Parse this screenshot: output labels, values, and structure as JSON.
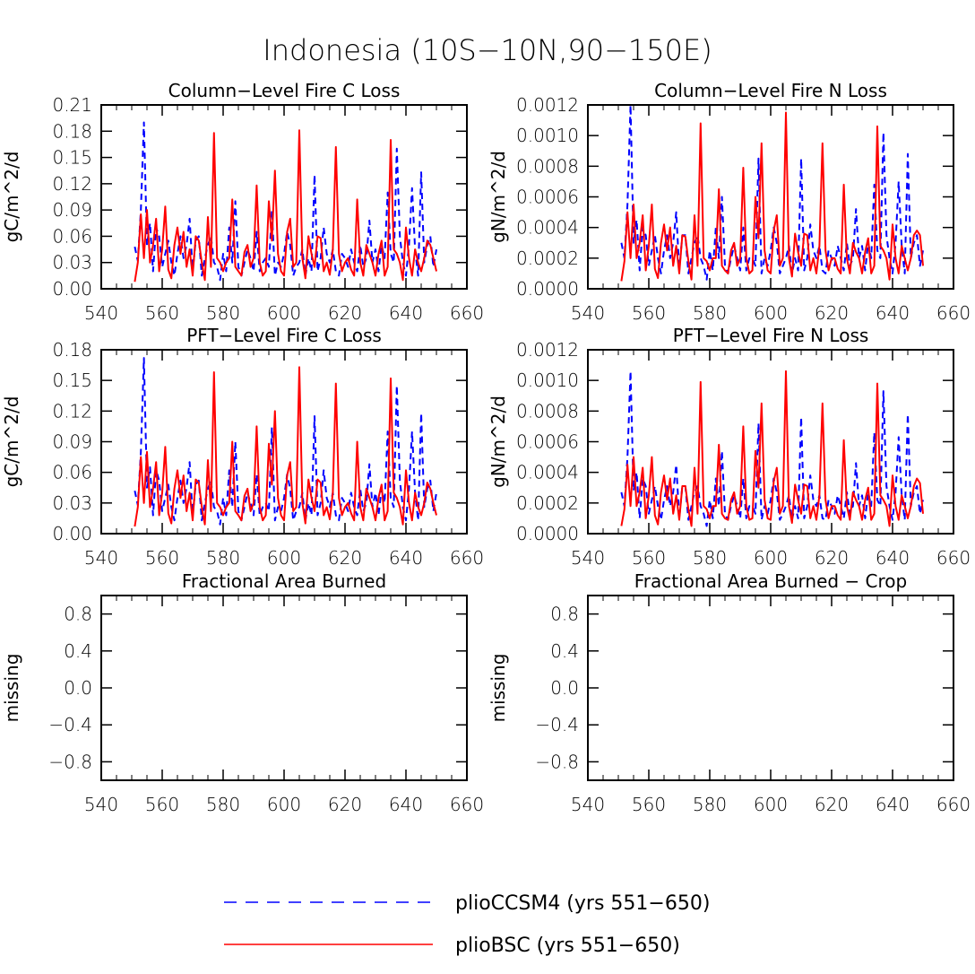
{
  "title": "Indonesia (10S−10N,90−150E)",
  "legend": [
    {
      "label": "plioCCSM4 (yrs 551−650)",
      "color": "#0000ff",
      "dash": "14 10"
    },
    {
      "label": "plioBSC (yrs 551−650)",
      "color": "#ff0000",
      "dash": ""
    }
  ],
  "chart_data": [
    {
      "type": "line",
      "title": "Column−Level Fire C Loss",
      "ylabel": "gC/m^2/d",
      "xlim": [
        540,
        660
      ],
      "ylim": [
        0,
        0.21
      ],
      "xticks": [
        "540",
        "560",
        "580",
        "600",
        "620",
        "640",
        "660"
      ],
      "yticks": [
        "0.00",
        "0.03",
        "0.06",
        "0.09",
        "0.12",
        "0.15",
        "0.18",
        "0.21"
      ],
      "x_start": 551,
      "series": [
        {
          "name": "plioCCSM4 (yrs 551−650)",
          "values": [
            0.048,
            0.032,
            0.09,
            0.19,
            0.05,
            0.075,
            0.02,
            0.07,
            0.06,
            0.025,
            0.04,
            0.055,
            0.03,
            0.015,
            0.04,
            0.06,
            0.035,
            0.05,
            0.08,
            0.02,
            0.055,
            0.06,
            0.015,
            0.035,
            0.05,
            0.06,
            0.03,
            0.025,
            0.01,
            0.04,
            0.02,
            0.07,
            0.03,
            0.1,
            0.025,
            0.015,
            0.03,
            0.045,
            0.035,
            0.02,
            0.065,
            0.02,
            0.03,
            0.035,
            0.025,
            0.09,
            0.015,
            0.03,
            0.025,
            0.04,
            0.065,
            0.05,
            0.015,
            0.025,
            0.03,
            0.045,
            0.015,
            0.035,
            0.02,
            0.13,
            0.02,
            0.035,
            0.07,
            0.04,
            0.03,
            0.045,
            0.02,
            0.015,
            0.04,
            0.035,
            0.025,
            0.045,
            0.03,
            0.02,
            0.05,
            0.025,
            0.035,
            0.078,
            0.03,
            0.045,
            0.02,
            0.05,
            0.035,
            0.11,
            0.04,
            0.03,
            0.16,
            0.06,
            0.03,
            0.015,
            0.05,
            0.115,
            0.045,
            0.015,
            0.133,
            0.03,
            0.05,
            0.06,
            0.025,
            0.045
          ]
        },
        {
          "name": "plioBSC (yrs 551−650)",
          "values": [
            0.008,
            0.03,
            0.085,
            0.035,
            0.09,
            0.03,
            0.05,
            0.08,
            0.02,
            0.045,
            0.094,
            0.022,
            0.012,
            0.05,
            0.07,
            0.04,
            0.065,
            0.025,
            0.045,
            0.015,
            0.06,
            0.055,
            0.03,
            0.01,
            0.082,
            0.025,
            0.178,
            0.035,
            0.03,
            0.02,
            0.03,
            0.035,
            0.102,
            0.025,
            0.02,
            0.015,
            0.042,
            0.05,
            0.025,
            0.035,
            0.118,
            0.03,
            0.015,
            0.02,
            0.1,
            0.055,
            0.135,
            0.04,
            0.02,
            0.015,
            0.065,
            0.08,
            0.025,
            0.03,
            0.181,
            0.035,
            0.012,
            0.06,
            0.04,
            0.025,
            0.06,
            0.058,
            0.02,
            0.03,
            0.016,
            0.045,
            0.162,
            0.04,
            0.02,
            0.03,
            0.035,
            0.022,
            0.015,
            0.102,
            0.03,
            0.015,
            0.05,
            0.04,
            0.03,
            0.015,
            0.04,
            0.055,
            0.015,
            0.025,
            0.17,
            0.045,
            0.04,
            0.03,
            0.01,
            0.07,
            0.035,
            0.015,
            0.045,
            0.03,
            0.02,
            0.035,
            0.055,
            0.05,
            0.035,
            0.02
          ]
        }
      ]
    },
    {
      "type": "line",
      "title": "Column−Level Fire N Loss",
      "ylabel": "gN/m^2/d",
      "xlim": [
        540,
        660
      ],
      "ylim": [
        0,
        0.0012
      ],
      "xticks": [
        "540",
        "560",
        "580",
        "600",
        "620",
        "640",
        "660"
      ],
      "yticks": [
        "0.0000",
        "0.0002",
        "0.0004",
        "0.0006",
        "0.0008",
        "0.0010",
        "0.0012"
      ],
      "x_start": 551,
      "series": [
        {
          "name": "plioCCSM4 (yrs 551−650)",
          "values": [
            0.0003,
            0.0002,
            0.00055,
            0.0012,
            0.0003,
            0.00045,
            0.00012,
            0.0004,
            0.00035,
            0.00015,
            0.00025,
            0.00035,
            0.0002,
            0.0001,
            0.00025,
            0.00035,
            0.0002,
            0.0003,
            0.0005,
            0.00012,
            0.00035,
            0.00035,
            0.0001,
            0.0002,
            0.0003,
            0.00035,
            0.0002,
            0.00015,
            6e-05,
            0.00025,
            0.00012,
            0.0004,
            0.0002,
            0.0006,
            0.00015,
            0.0001,
            0.0002,
            0.00028,
            0.0002,
            0.00012,
            0.0004,
            0.00012,
            0.0002,
            0.0002,
            0.00015,
            0.00085,
            0.0001,
            0.0002,
            0.00015,
            0.00025,
            0.0004,
            0.0003,
            0.0001,
            0.00015,
            0.0002,
            0.00028,
            0.0001,
            0.0002,
            0.00012,
            0.00085,
            0.00012,
            0.0002,
            0.00042,
            0.00025,
            0.0002,
            0.00028,
            0.00012,
            0.0001,
            0.00025,
            0.0002,
            0.00015,
            0.00028,
            0.0002,
            0.00012,
            0.0003,
            0.00015,
            0.0002,
            0.00052,
            0.0002,
            0.00028,
            0.00012,
            0.0003,
            0.0002,
            0.00068,
            0.00025,
            0.0002,
            0.00102,
            0.00035,
            0.0002,
            0.0001,
            0.0003,
            0.0007,
            0.00028,
            0.0001,
            0.00088,
            0.0002,
            0.0003,
            0.00035,
            0.00015,
            0.00025
          ]
        },
        {
          "name": "plioBSC (yrs 551−650)",
          "values": [
            5e-05,
            0.00018,
            0.0005,
            0.0002,
            0.00055,
            0.0002,
            0.0003,
            0.00048,
            0.00012,
            0.00028,
            0.00055,
            0.00013,
            7e-05,
            0.0003,
            0.00042,
            0.00025,
            0.0004,
            0.00015,
            0.00028,
            0.0001,
            0.00035,
            0.00034,
            0.00018,
            6e-05,
            0.00048,
            0.00015,
            0.00108,
            0.0002,
            0.00018,
            0.00012,
            0.0002,
            0.0002,
            0.00065,
            0.00015,
            0.00012,
            0.0001,
            0.00025,
            0.0003,
            0.00015,
            0.0002,
            0.00079,
            0.0002,
            0.0001,
            0.00012,
            0.0006,
            0.00033,
            0.00095,
            0.00025,
            0.00012,
            0.0001,
            0.00038,
            0.00048,
            0.00015,
            0.0002,
            0.00115,
            0.0002,
            8e-05,
            0.00036,
            0.00024,
            0.00015,
            0.00036,
            0.00035,
            0.00012,
            0.0002,
            0.0001,
            0.00028,
            0.00095,
            0.00025,
            0.00012,
            0.0002,
            0.0002,
            0.00013,
            0.0001,
            0.00068,
            0.0002,
            0.0001,
            0.0003,
            0.00024,
            0.0002,
            0.0001,
            0.00024,
            0.00033,
            0.0001,
            0.00015,
            0.00106,
            0.00028,
            0.00025,
            0.0002,
            6e-05,
            0.00042,
            0.0002,
            0.0001,
            0.00028,
            0.0002,
            0.00012,
            0.0002,
            0.00035,
            0.00038,
            0.00035,
            0.00015
          ]
        }
      ]
    },
    {
      "type": "line",
      "title": "PFT−Level Fire C Loss",
      "ylabel": "gC/m^2/d",
      "xlim": [
        540,
        660
      ],
      "ylim": [
        0,
        0.18
      ],
      "xticks": [
        "540",
        "560",
        "580",
        "600",
        "620",
        "640",
        "660"
      ],
      "yticks": [
        "0.00",
        "0.03",
        "0.06",
        "0.09",
        "0.12",
        "0.15",
        "0.18"
      ],
      "x_start": 551,
      "series": [
        {
          "name": "plioCCSM4 (yrs 551−650)",
          "values": [
            0.042,
            0.028,
            0.08,
            0.172,
            0.045,
            0.065,
            0.018,
            0.062,
            0.052,
            0.022,
            0.035,
            0.048,
            0.026,
            0.013,
            0.035,
            0.052,
            0.03,
            0.045,
            0.07,
            0.018,
            0.048,
            0.052,
            0.013,
            0.03,
            0.044,
            0.052,
            0.026,
            0.022,
            0.009,
            0.035,
            0.018,
            0.062,
            0.026,
            0.09,
            0.022,
            0.013,
            0.026,
            0.04,
            0.03,
            0.018,
            0.058,
            0.018,
            0.026,
            0.03,
            0.022,
            0.104,
            0.013,
            0.026,
            0.022,
            0.035,
            0.058,
            0.044,
            0.013,
            0.022,
            0.026,
            0.04,
            0.013,
            0.03,
            0.018,
            0.115,
            0.018,
            0.03,
            0.062,
            0.035,
            0.026,
            0.04,
            0.018,
            0.013,
            0.035,
            0.03,
            0.022,
            0.04,
            0.026,
            0.018,
            0.044,
            0.022,
            0.03,
            0.068,
            0.026,
            0.04,
            0.018,
            0.044,
            0.03,
            0.1,
            0.035,
            0.026,
            0.145,
            0.052,
            0.026,
            0.013,
            0.044,
            0.1,
            0.04,
            0.013,
            0.118,
            0.026,
            0.044,
            0.052,
            0.022,
            0.04
          ]
        },
        {
          "name": "plioBSC (yrs 551−650)",
          "values": [
            0.007,
            0.026,
            0.075,
            0.03,
            0.08,
            0.026,
            0.044,
            0.07,
            0.018,
            0.04,
            0.085,
            0.02,
            0.01,
            0.044,
            0.062,
            0.035,
            0.057,
            0.022,
            0.04,
            0.013,
            0.053,
            0.05,
            0.026,
            0.009,
            0.072,
            0.022,
            0.158,
            0.03,
            0.026,
            0.018,
            0.026,
            0.03,
            0.09,
            0.022,
            0.018,
            0.013,
            0.037,
            0.044,
            0.022,
            0.03,
            0.105,
            0.026,
            0.013,
            0.018,
            0.088,
            0.048,
            0.12,
            0.035,
            0.018,
            0.013,
            0.057,
            0.07,
            0.022,
            0.026,
            0.163,
            0.03,
            0.01,
            0.053,
            0.035,
            0.022,
            0.053,
            0.05,
            0.018,
            0.026,
            0.014,
            0.04,
            0.147,
            0.035,
            0.018,
            0.026,
            0.03,
            0.02,
            0.013,
            0.09,
            0.026,
            0.013,
            0.044,
            0.035,
            0.026,
            0.013,
            0.035,
            0.048,
            0.013,
            0.022,
            0.152,
            0.04,
            0.035,
            0.026,
            0.009,
            0.062,
            0.03,
            0.013,
            0.04,
            0.026,
            0.018,
            0.03,
            0.05,
            0.044,
            0.03,
            0.018
          ]
        }
      ]
    },
    {
      "type": "line",
      "title": "PFT−Level Fire N Loss",
      "ylabel": "gN/m^2/d",
      "xlim": [
        540,
        660
      ],
      "ylim": [
        0,
        0.0012
      ],
      "xticks": [
        "540",
        "560",
        "580",
        "600",
        "620",
        "640",
        "660"
      ],
      "yticks": [
        "0.0000",
        "0.0002",
        "0.0004",
        "0.0006",
        "0.0008",
        "0.0010",
        "0.0012"
      ],
      "x_start": 551,
      "series": [
        {
          "name": "plioCCSM4 (yrs 551−650)",
          "values": [
            0.00027,
            0.00018,
            0.0005,
            0.00106,
            0.00028,
            0.0004,
            0.0001,
            0.00036,
            0.00031,
            0.00013,
            0.00022,
            0.00031,
            0.00018,
            9e-05,
            0.00022,
            0.00031,
            0.00018,
            0.00027,
            0.00045,
            0.0001,
            0.00031,
            0.00031,
            9e-05,
            0.00018,
            0.00027,
            0.00031,
            0.00018,
            0.00013,
            5e-05,
            0.00022,
            0.0001,
            0.00036,
            0.00018,
            0.00054,
            0.00013,
            9e-05,
            0.00018,
            0.00025,
            0.00018,
            0.0001,
            0.00036,
            0.0001,
            0.00018,
            0.00018,
            0.00013,
            0.00072,
            9e-05,
            0.00018,
            0.00013,
            0.00022,
            0.00036,
            0.00027,
            9e-05,
            0.00013,
            0.00018,
            0.00025,
            9e-05,
            0.00018,
            0.0001,
            0.00076,
            0.0001,
            0.00018,
            0.00038,
            0.00022,
            0.00018,
            0.00025,
            0.0001,
            9e-05,
            0.00022,
            0.00018,
            0.00013,
            0.00025,
            0.00018,
            0.0001,
            0.00027,
            0.00013,
            0.00018,
            0.00046,
            0.00018,
            0.00025,
            0.0001,
            0.00027,
            0.00018,
            0.00066,
            0.00022,
            0.00018,
            0.00093,
            0.00031,
            0.00018,
            9e-05,
            0.00027,
            0.00063,
            0.00025,
            9e-05,
            0.00078,
            0.00018,
            0.00027,
            0.00031,
            0.00013,
            0.00022
          ]
        },
        {
          "name": "plioBSC (yrs 551−650)",
          "values": [
            5e-05,
            0.00016,
            0.00045,
            0.00018,
            0.0005,
            0.00018,
            0.00027,
            0.00043,
            0.0001,
            0.00025,
            0.0005,
            0.00012,
            6e-05,
            0.00027,
            0.00038,
            0.00022,
            0.00036,
            0.00013,
            0.00025,
            9e-05,
            0.00031,
            0.00031,
            0.00016,
            5e-05,
            0.00043,
            0.00013,
            0.00099,
            0.00018,
            0.00016,
            0.0001,
            0.00018,
            0.00018,
            0.00058,
            0.00013,
            0.0001,
            9e-05,
            0.00022,
            0.00027,
            0.00013,
            0.00018,
            0.0007,
            0.00018,
            9e-05,
            0.0001,
            0.00054,
            0.0003,
            0.00085,
            0.00022,
            0.0001,
            9e-05,
            0.00034,
            0.00043,
            0.00013,
            0.00018,
            0.00106,
            0.00018,
            7e-05,
            0.00032,
            0.00022,
            0.00013,
            0.00032,
            0.00031,
            0.0001,
            0.00018,
            9e-05,
            0.00025,
            0.00085,
            0.00022,
            0.0001,
            0.00018,
            0.00018,
            0.00012,
            9e-05,
            0.00061,
            0.00018,
            9e-05,
            0.00027,
            0.00022,
            0.00018,
            9e-05,
            0.00022,
            0.0003,
            9e-05,
            0.00013,
            0.00098,
            0.00025,
            0.00022,
            0.00018,
            5e-05,
            0.00038,
            0.00018,
            9e-05,
            0.00025,
            0.00018,
            0.0001,
            0.00018,
            0.00031,
            0.00036,
            0.00033,
            0.00013
          ]
        }
      ]
    },
    {
      "type": "line",
      "title": "Fractional Area Burned",
      "ylabel": "missing",
      "xlim": [
        540,
        660
      ],
      "ylim": [
        -1,
        1
      ],
      "xticks": [
        "540",
        "560",
        "580",
        "600",
        "620",
        "640",
        "660"
      ],
      "yticks": [
        "−0.8",
        "−0.4",
        "0.0",
        "0.4",
        "0.8"
      ],
      "x_start": 551,
      "series": []
    },
    {
      "type": "line",
      "title": "Fractional Area Burned − Crop",
      "ylabel": "missing",
      "xlim": [
        540,
        660
      ],
      "ylim": [
        -1,
        1
      ],
      "xticks": [
        "540",
        "560",
        "580",
        "600",
        "620",
        "640",
        "660"
      ],
      "yticks": [
        "−0.8",
        "−0.4",
        "0.0",
        "0.4",
        "0.8"
      ],
      "x_start": 551,
      "series": []
    }
  ]
}
